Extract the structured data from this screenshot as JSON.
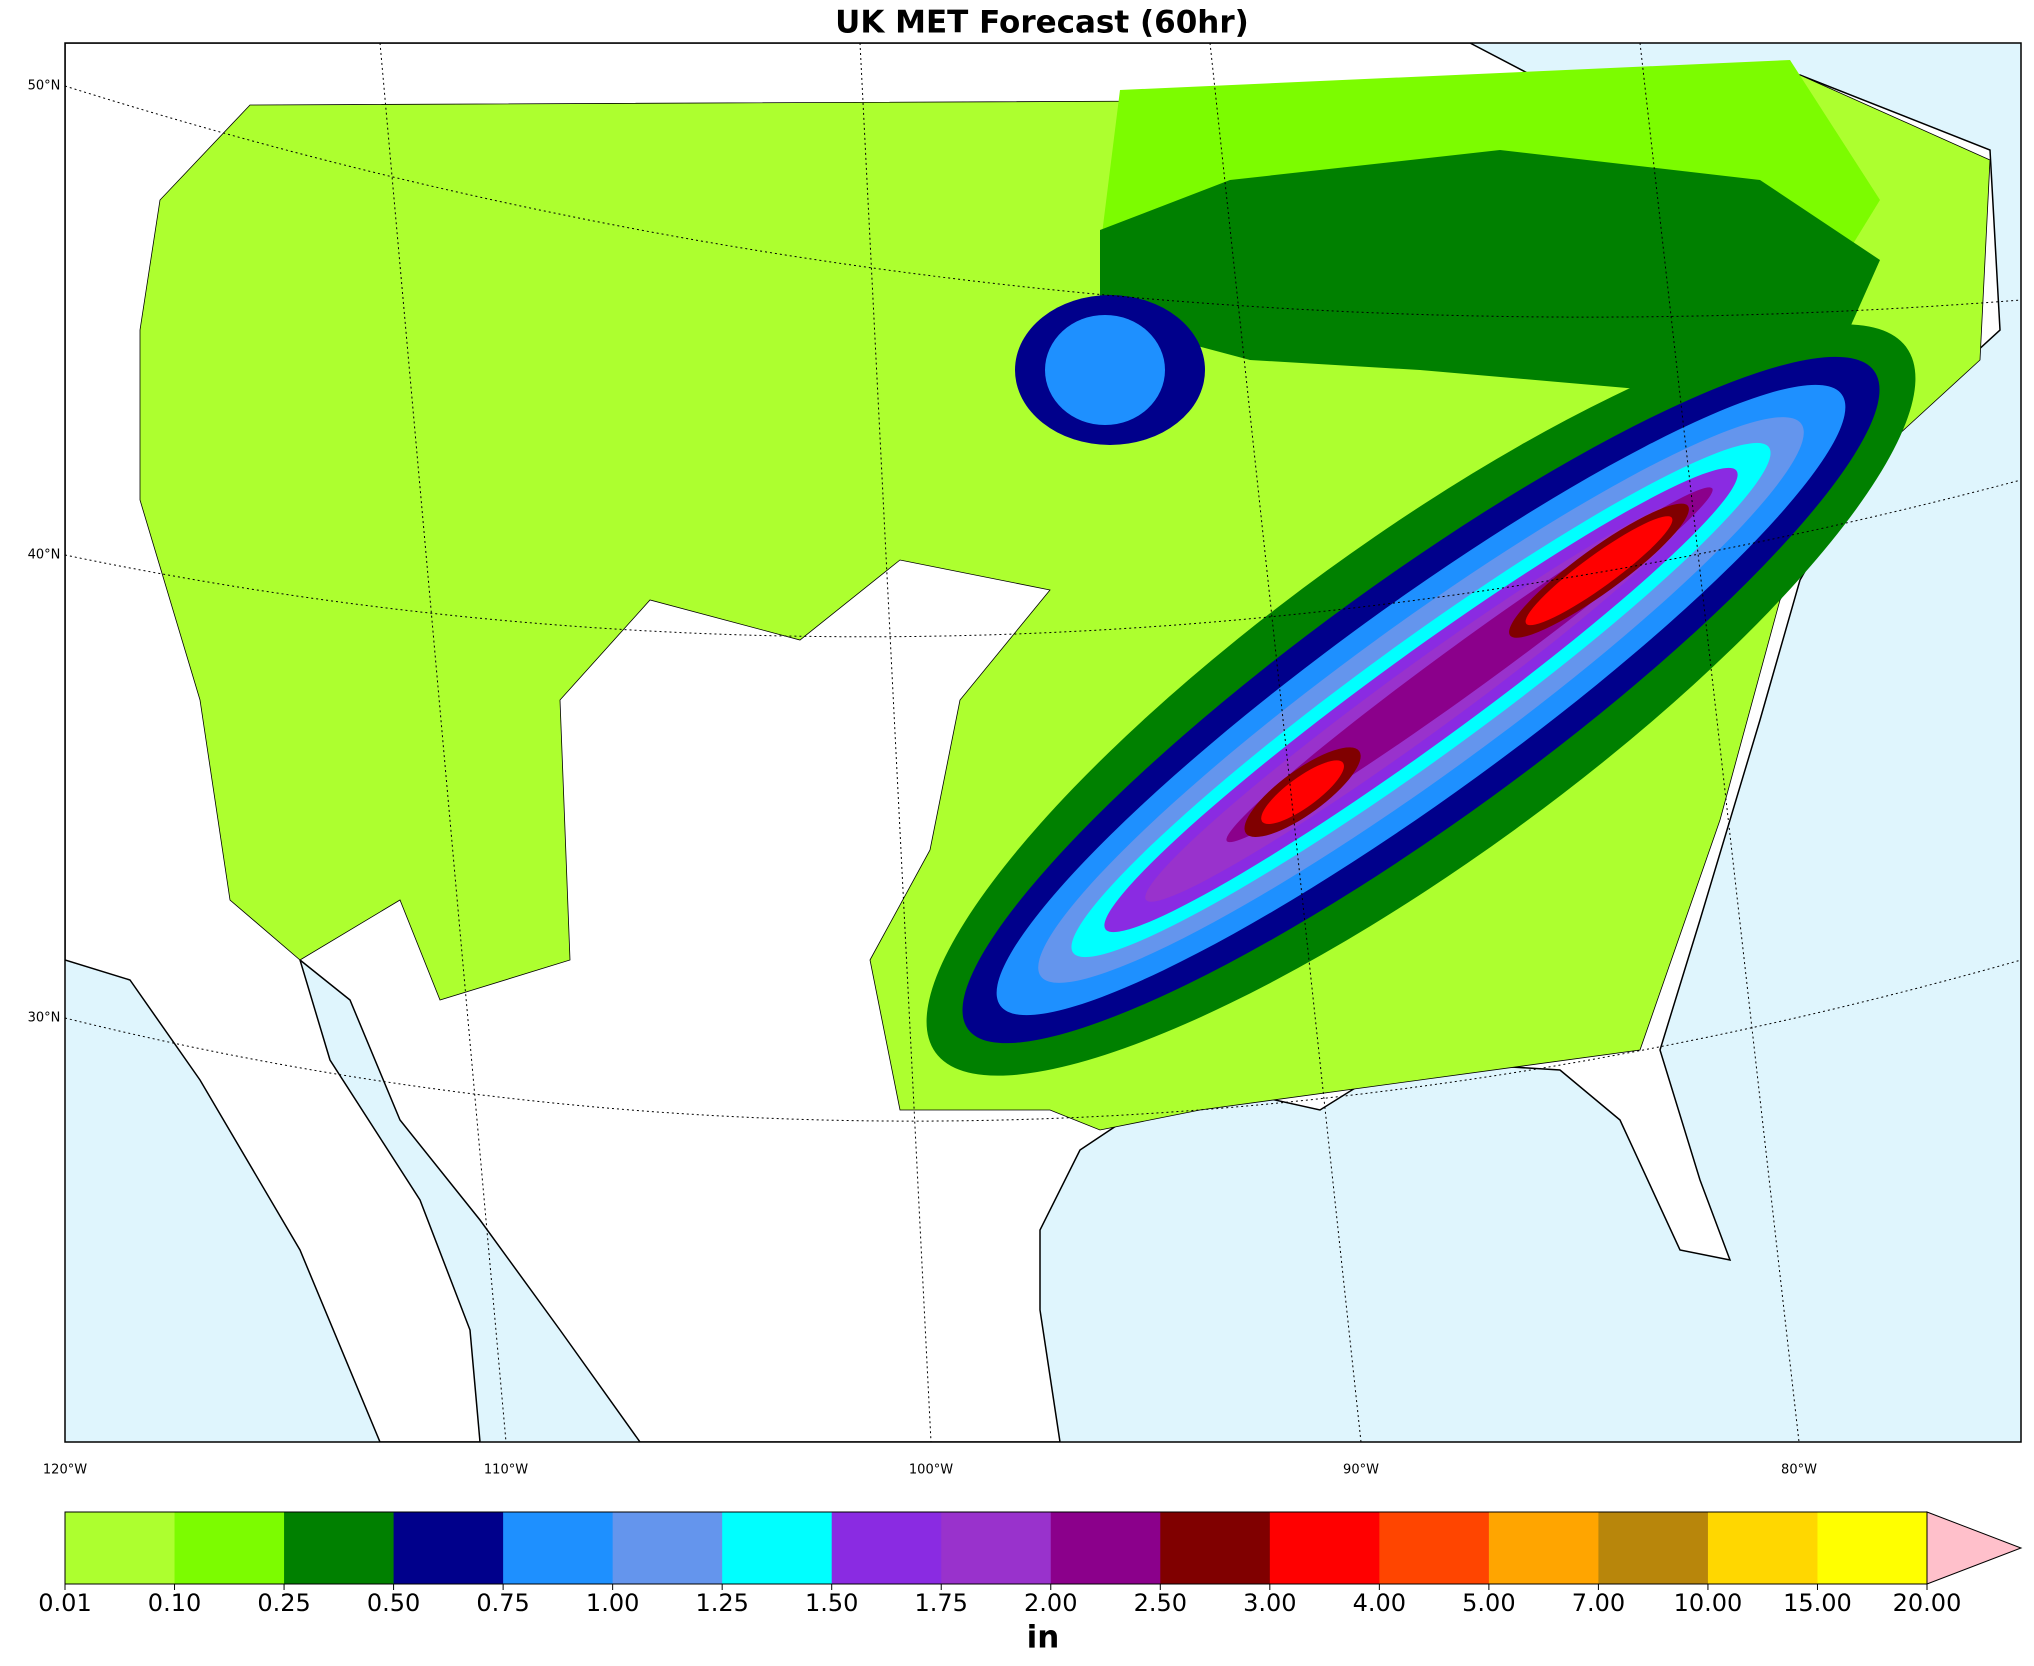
{
  "title": "UK MET Forecast (60hr)",
  "map": {
    "lat_labels": [
      "50°N",
      "40°N",
      "30°N"
    ],
    "lon_labels": [
      "120°W",
      "110°W",
      "100°W",
      "90°W",
      "80°W"
    ]
  },
  "colorbar": {
    "colors": [
      "#adff2f",
      "#7cfc00",
      "#008000",
      "#00008b",
      "#1e90ff",
      "#6495ed",
      "#00ffff",
      "#8a2be2",
      "#9932cc",
      "#8b008b",
      "#800000",
      "#ff0000",
      "#ff4500",
      "#ffa500",
      "#b8860b",
      "#ffd700",
      "#ffff00"
    ],
    "extend_color": "#ffc0cb",
    "ticks": [
      {
        "value": 0.01,
        "label": "0.01"
      },
      {
        "value": 0.1,
        "label": "0.10"
      },
      {
        "value": 0.25,
        "label": "0.25"
      },
      {
        "value": 0.5,
        "label": "0.50"
      },
      {
        "value": 0.75,
        "label": "0.75"
      },
      {
        "value": 1,
        "label": "1.00"
      },
      {
        "value": 1.25,
        "label": "1.25"
      },
      {
        "value": 1.5,
        "label": "1.50"
      },
      {
        "value": 1.75,
        "label": "1.75"
      },
      {
        "value": 2,
        "label": "2.00"
      },
      {
        "value": 2.5,
        "label": "2.50"
      },
      {
        "value": 3,
        "label": "3.00"
      },
      {
        "value": 4,
        "label": "4.00"
      },
      {
        "value": 5,
        "label": "5.00"
      },
      {
        "value": 7,
        "label": "7.00"
      },
      {
        "value": 10,
        "label": "10.00"
      },
      {
        "value": 15,
        "label": "15.00"
      },
      {
        "value": 20,
        "label": "20.00"
      }
    ],
    "label": "in"
  }
}
